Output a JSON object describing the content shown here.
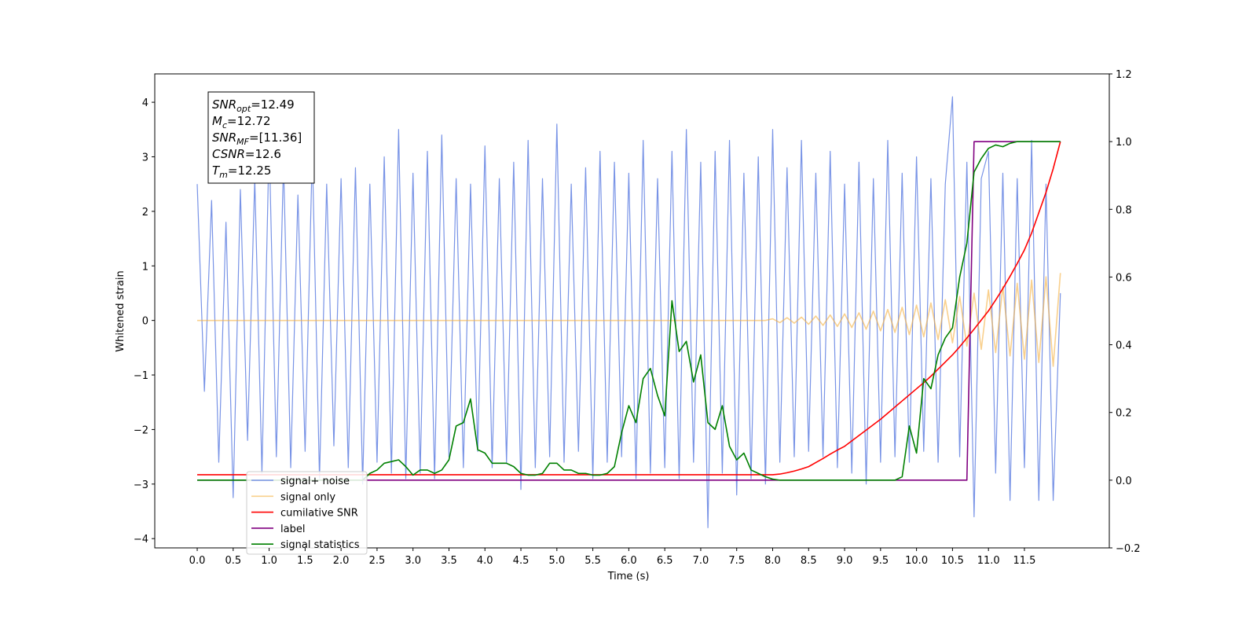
{
  "chart_data": {
    "type": "line",
    "xlabel": "Time (s)",
    "ylabel": "Whitened strain",
    "xlim": [
      -0.59,
      12.68
    ],
    "ylim": [
      -4.17,
      4.52
    ],
    "y2lim": [
      -0.2,
      1.2
    ],
    "xticks": [
      {
        "value": 0,
        "label": "0.0"
      },
      0.5,
      {
        "value": 1,
        "label": "1.0"
      },
      1.5,
      {
        "value": 2,
        "label": "2.0"
      },
      2.5,
      {
        "value": 3,
        "label": "3.0"
      },
      3.5,
      {
        "value": 4,
        "label": "4.0"
      },
      4.5,
      {
        "value": 5,
        "label": "5.0"
      },
      5.5,
      {
        "value": 6,
        "label": "6.0"
      },
      6.5,
      {
        "value": 7,
        "label": "7.0"
      },
      7.5,
      {
        "value": 8,
        "label": "8.0"
      },
      8.5,
      {
        "value": 9,
        "label": "9.0"
      },
      9.5,
      {
        "value": 10,
        "label": "10.0"
      },
      10.5,
      {
        "value": 11,
        "label": "11.0"
      },
      11.5
    ],
    "yticks": [
      {
        "value": -4,
        "label": "−4"
      },
      {
        "value": -3,
        "label": "−3"
      },
      {
        "value": -2,
        "label": "−2"
      },
      {
        "value": -1,
        "label": "−1"
      },
      0,
      1,
      2,
      3,
      4
    ],
    "y2ticks": [
      {
        "value": -0.2,
        "label": "−0.2"
      },
      {
        "value": 0,
        "label": "0.0"
      },
      0.2,
      0.4,
      0.6,
      0.8,
      {
        "value": 1,
        "label": "1.0"
      },
      1.2
    ],
    "legend": "lower left",
    "annotation": [
      {
        "symbol": "SNR",
        "subscript": "opt",
        "value": "=12.49"
      },
      {
        "symbol": "M",
        "subscript": "c",
        "value": "=12.72"
      },
      {
        "symbol": "SNR",
        "subscript": "MF",
        "value": "=[11.36]"
      },
      {
        "symbol": "CSNR",
        "subscript": null,
        "value": "=12.6"
      },
      {
        "symbol": "T",
        "subscript": "m",
        "value": "=12.25"
      }
    ],
    "x": [
      0,
      0.1,
      0.2,
      0.3,
      0.4,
      0.5,
      0.6,
      0.7,
      0.8,
      0.9,
      1,
      1.1,
      1.2,
      1.3,
      1.4,
      1.5,
      1.6,
      1.7,
      1.8,
      1.9,
      2,
      2.1,
      2.2,
      2.3,
      2.4,
      2.5,
      2.6,
      2.7,
      2.8,
      2.9,
      3,
      3.1,
      3.2,
      3.3,
      3.4,
      3.5,
      3.6,
      3.7,
      3.8,
      3.9,
      4,
      4.1,
      4.2,
      4.3,
      4.4,
      4.5,
      4.6,
      4.7,
      4.8,
      4.9,
      5,
      5.1,
      5.2,
      5.3,
      5.4,
      5.5,
      5.6,
      5.7,
      5.8,
      5.9,
      6,
      6.1,
      6.2,
      6.3,
      6.4,
      6.5,
      6.6,
      6.7,
      6.8,
      6.9,
      7,
      7.1,
      7.2,
      7.3,
      7.4,
      7.5,
      7.6,
      7.7,
      7.8,
      7.9,
      8,
      8.1,
      8.2,
      8.3,
      8.4,
      8.5,
      8.6,
      8.7,
      8.8,
      8.9,
      9,
      9.1,
      9.2,
      9.3,
      9.4,
      9.5,
      9.6,
      9.7,
      9.8,
      9.9,
      10,
      10.1,
      10.2,
      10.3,
      10.4,
      10.5,
      10.6,
      10.7,
      10.8,
      10.9,
      11,
      11.1,
      11.2,
      11.3,
      11.4,
      11.5,
      11.6,
      11.7,
      11.8,
      11.9,
      12
    ],
    "series": [
      {
        "name": "signal+ noise",
        "color": "#7893e6",
        "axis": "y",
        "values": [
          2.5,
          -1.3,
          2.2,
          -2.6,
          1.8,
          -3.25,
          2.4,
          -2.2,
          2.6,
          -2.8,
          3.3,
          -2.5,
          2.9,
          -2.7,
          2.3,
          -2.4,
          3.1,
          -2.9,
          2.5,
          -2.3,
          2.6,
          -2.7,
          2.8,
          -3.0,
          2.5,
          -2.6,
          3.0,
          -2.8,
          3.5,
          -2.9,
          2.7,
          -2.8,
          3.1,
          -2.9,
          3.4,
          -2.5,
          2.6,
          -2.7,
          2.5,
          -2.4,
          3.2,
          -2.7,
          2.6,
          -2.6,
          2.9,
          -3.1,
          3.3,
          -2.7,
          2.6,
          -2.5,
          3.6,
          -2.6,
          2.5,
          -2.4,
          2.8,
          -2.9,
          3.1,
          -2.6,
          2.9,
          -2.5,
          2.7,
          -2.9,
          3.3,
          -2.8,
          2.6,
          -2.7,
          3.1,
          -2.9,
          3.5,
          -2.6,
          2.9,
          -3.8,
          3.1,
          -2.8,
          3.3,
          -3.2,
          2.7,
          -2.9,
          3.0,
          -3.0,
          3.5,
          -2.6,
          2.8,
          -2.5,
          3.3,
          -2.4,
          2.7,
          -2.5,
          3.1,
          -2.7,
          2.5,
          -2.8,
          2.9,
          -3.0,
          2.6,
          -2.6,
          3.3,
          -2.5,
          2.7,
          -2.6,
          3.0,
          -2.4,
          2.6,
          -2.6,
          2.5,
          4.1,
          -2.5,
          2.9,
          -3.6,
          2.6,
          3.1,
          -2.8,
          2.7,
          -3.3,
          2.6,
          -2.7,
          3.3,
          -3.3,
          2.5,
          -3.3,
          0.5
        ]
      },
      {
        "name": "signal only",
        "color": "#f5b041",
        "axis": "y",
        "values": [
          0,
          0,
          0,
          0,
          0,
          0,
          0,
          0,
          0,
          0,
          0,
          0,
          0,
          0,
          0,
          0,
          0,
          0,
          0,
          0,
          0,
          0,
          0,
          0,
          0,
          0,
          0,
          0,
          0,
          0,
          0,
          0,
          0,
          0,
          0,
          0,
          0,
          0,
          0,
          0,
          0,
          0,
          0,
          0,
          0,
          0,
          0,
          0,
          0,
          0,
          0,
          0,
          0,
          0,
          0,
          0,
          0,
          0,
          0,
          0,
          0,
          0,
          0,
          0,
          0,
          0,
          0,
          0,
          0,
          0,
          0,
          0,
          0,
          0,
          0,
          0,
          0,
          0,
          0,
          0,
          0.03,
          -0.04,
          0.05,
          -0.05,
          0.06,
          -0.07,
          0.08,
          -0.09,
          0.1,
          -0.11,
          0.12,
          -0.13,
          0.14,
          -0.16,
          0.17,
          -0.19,
          0.2,
          -0.22,
          0.24,
          -0.26,
          0.28,
          -0.3,
          0.32,
          -0.35,
          0.38,
          -0.41,
          0.44,
          -0.47,
          0.5,
          -0.53,
          0.56,
          -0.59,
          0.62,
          -0.65,
          0.68,
          -0.71,
          0.74,
          -0.77,
          0.8,
          -0.84,
          0.87
        ]
      },
      {
        "name": "cumilative SNR",
        "color": "#ff0000",
        "axis": "y2",
        "values": [
          0.016,
          0.016,
          0.016,
          0.016,
          0.016,
          0.016,
          0.016,
          0.016,
          0.016,
          0.016,
          0.016,
          0.016,
          0.016,
          0.016,
          0.016,
          0.016,
          0.016,
          0.016,
          0.016,
          0.016,
          0.016,
          0.016,
          0.016,
          0.016,
          0.016,
          0.016,
          0.016,
          0.016,
          0.016,
          0.016,
          0.016,
          0.016,
          0.016,
          0.016,
          0.016,
          0.016,
          0.016,
          0.016,
          0.016,
          0.016,
          0.016,
          0.016,
          0.016,
          0.016,
          0.016,
          0.016,
          0.016,
          0.016,
          0.016,
          0.016,
          0.016,
          0.016,
          0.016,
          0.016,
          0.016,
          0.016,
          0.016,
          0.016,
          0.016,
          0.016,
          0.016,
          0.016,
          0.016,
          0.016,
          0.016,
          0.016,
          0.016,
          0.016,
          0.016,
          0.016,
          0.016,
          0.016,
          0.016,
          0.016,
          0.016,
          0.016,
          0.016,
          0.016,
          0.016,
          0.016,
          0.016,
          0.018,
          0.022,
          0.027,
          0.033,
          0.04,
          0.052,
          0.064,
          0.077,
          0.089,
          0.1,
          0.116,
          0.132,
          0.148,
          0.164,
          0.18,
          0.198,
          0.216,
          0.234,
          0.252,
          0.27,
          0.288,
          0.307,
          0.328,
          0.349,
          0.37,
          0.394,
          0.42,
          0.446,
          0.473,
          0.5,
          0.532,
          0.566,
          0.602,
          0.64,
          0.68,
          0.73,
          0.79,
          0.85,
          0.92,
          1.0
        ]
      },
      {
        "name": "label",
        "color": "#800080",
        "axis": "y2",
        "values": [
          0,
          0,
          0,
          0,
          0,
          0,
          0,
          0,
          0,
          0,
          0,
          0,
          0,
          0,
          0,
          0,
          0,
          0,
          0,
          0,
          0,
          0,
          0,
          0,
          0,
          0,
          0,
          0,
          0,
          0,
          0,
          0,
          0,
          0,
          0,
          0,
          0,
          0,
          0,
          0,
          0,
          0,
          0,
          0,
          0,
          0,
          0,
          0,
          0,
          0,
          0,
          0,
          0,
          0,
          0,
          0,
          0,
          0,
          0,
          0,
          0,
          0,
          0,
          0,
          0,
          0,
          0,
          0,
          0,
          0,
          0,
          0,
          0,
          0,
          0,
          0,
          0,
          0,
          0,
          0,
          0,
          0,
          0,
          0,
          0,
          0,
          0,
          0,
          0,
          0,
          0,
          0,
          0,
          0,
          0,
          0,
          0,
          0,
          0,
          0,
          0,
          0,
          0,
          0,
          0,
          0,
          0,
          0,
          1,
          1,
          1,
          1,
          1,
          1,
          1,
          1,
          1,
          1,
          1,
          1,
          1
        ]
      },
      {
        "name": "signal statistics",
        "color": "#008000",
        "axis": "y2",
        "values": [
          0,
          0,
          0,
          0,
          0,
          0,
          0,
          0,
          0,
          0,
          0,
          0,
          0,
          0,
          0,
          0,
          0,
          0,
          0,
          0,
          0,
          0,
          0,
          0,
          0.02,
          0.03,
          0.05,
          0.055,
          0.06,
          0.04,
          0.015,
          0.03,
          0.03,
          0.02,
          0.03,
          0.06,
          0.16,
          0.17,
          0.24,
          0.09,
          0.08,
          0.05,
          0.05,
          0.05,
          0.04,
          0.02,
          0.015,
          0.015,
          0.02,
          0.05,
          0.05,
          0.03,
          0.03,
          0.02,
          0.02,
          0.015,
          0.015,
          0.02,
          0.04,
          0.14,
          0.22,
          0.17,
          0.3,
          0.33,
          0.25,
          0.19,
          0.53,
          0.38,
          0.41,
          0.29,
          0.37,
          0.17,
          0.15,
          0.22,
          0.1,
          0.06,
          0.08,
          0.03,
          0.02,
          0.01,
          0.003,
          0,
          0,
          0,
          0,
          0,
          0,
          0,
          0,
          0,
          0,
          0,
          0,
          0,
          0,
          0,
          0,
          0,
          0.01,
          0.16,
          0.08,
          0.3,
          0.27,
          0.37,
          0.42,
          0.45,
          0.6,
          0.7,
          0.91,
          0.95,
          0.98,
          0.99,
          0.985,
          0.995,
          1,
          1,
          1,
          1,
          1,
          1,
          1
        ]
      }
    ]
  }
}
